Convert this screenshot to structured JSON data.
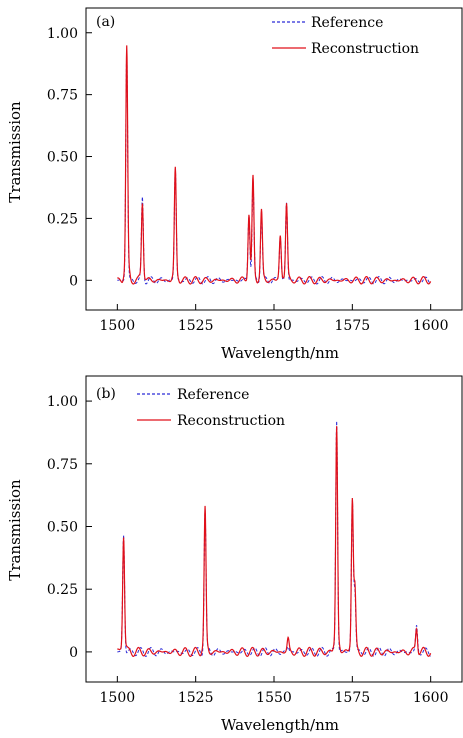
{
  "chart_data": [
    {
      "type": "line",
      "panel_label": "(a)",
      "xlabel": "Wavelength/nm",
      "ylabel": "Transmission",
      "xlim": [
        1490,
        1610
      ],
      "ylim": [
        -0.12,
        1.1
      ],
      "x_ticks": [
        1500,
        1525,
        1550,
        1575,
        1600
      ],
      "x_tick_labels": [
        "1500",
        "1525",
        "1550",
        "1575",
        "1600"
      ],
      "y_ticks": [
        0,
        0.25,
        0.5,
        0.75,
        1.0
      ],
      "y_tick_labels": [
        "0",
        "0.25",
        "0.50",
        "0.75",
        "1.00"
      ],
      "legend_position": "top-right",
      "series": [
        {
          "name": "Reference",
          "style": "dashed",
          "color": "#2a2ad8"
        },
        {
          "name": "Reconstruction",
          "style": "solid",
          "color": "#e0101a"
        }
      ],
      "peaks": [
        {
          "x": 1503,
          "ref": 0.93,
          "rec": 0.94
        },
        {
          "x": 1508,
          "ref": 0.33,
          "rec": 0.32
        },
        {
          "x": 1518.5,
          "ref": 0.45,
          "rec": 0.45
        },
        {
          "x": 1542,
          "ref": 0.27,
          "rec": 0.27
        },
        {
          "x": 1543.3,
          "ref": 0.4,
          "rec": 0.41
        },
        {
          "x": 1546,
          "ref": 0.28,
          "rec": 0.28
        },
        {
          "x": 1552,
          "ref": 0.18,
          "rec": 0.18
        },
        {
          "x": 1554,
          "ref": 0.31,
          "rec": 0.31
        }
      ],
      "ripple_amplitude": 0.015
    },
    {
      "type": "line",
      "panel_label": "(b)",
      "xlabel": "Wavelength/nm",
      "ylabel": "Transmission",
      "xlim": [
        1490,
        1610
      ],
      "ylim": [
        -0.12,
        1.1
      ],
      "x_ticks": [
        1500,
        1525,
        1550,
        1575,
        1600
      ],
      "x_tick_labels": [
        "1500",
        "1525",
        "1550",
        "1575",
        "1600"
      ],
      "y_ticks": [
        0,
        0.25,
        0.5,
        0.75,
        1.0
      ],
      "y_tick_labels": [
        "0",
        "0.25",
        "0.50",
        "0.75",
        "1.00"
      ],
      "legend_position": "top-left",
      "series": [
        {
          "name": "Reference",
          "style": "dashed",
          "color": "#2a2ad8"
        },
        {
          "name": "Reconstruction",
          "style": "solid",
          "color": "#e0101a"
        }
      ],
      "peaks": [
        {
          "x": 1502,
          "ref": 0.47,
          "rec": 0.47
        },
        {
          "x": 1528,
          "ref": 0.57,
          "rec": 0.57
        },
        {
          "x": 1554.5,
          "ref": 0.02,
          "rec": 0.05
        },
        {
          "x": 1570,
          "ref": 0.93,
          "rec": 0.9
        },
        {
          "x": 1575,
          "ref": 0.6,
          "rec": 0.61
        },
        {
          "x": 1575.8,
          "ref": 0.24,
          "rec": 0.24
        },
        {
          "x": 1595.5,
          "ref": 0.1,
          "rec": 0.1
        }
      ],
      "ripple_amplitude": 0.018
    }
  ]
}
